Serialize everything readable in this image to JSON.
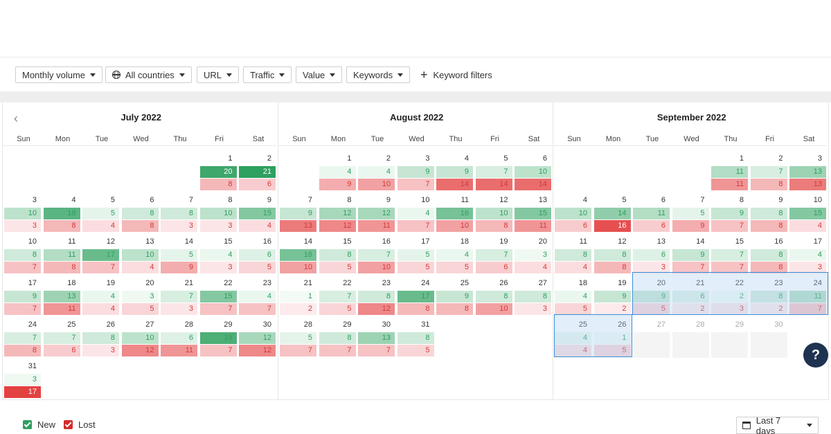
{
  "toolbar": {
    "monthly_volume": "Monthly volume",
    "all_countries": "All countries",
    "url": "URL",
    "traffic": "Traffic",
    "value": "Value",
    "keywords": "Keywords",
    "keyword_filters": "Keyword filters"
  },
  "colors": {
    "new_text": "#2f9e5f",
    "lost_text": "#d23a3a",
    "new_checkbox": "#2f9e5f",
    "lost_checkbox": "#d42a2a",
    "selection_border": "#3b8fd8"
  },
  "weekdays": [
    "Sun",
    "Mon",
    "Tue",
    "Wed",
    "Thu",
    "Fri",
    "Sat"
  ],
  "months": [
    {
      "title": "July 2022",
      "start_weekday": 5,
      "days": [
        [
          20,
          8
        ],
        [
          21,
          6
        ],
        [
          10,
          3
        ],
        [
          18,
          8
        ],
        [
          5,
          4
        ],
        [
          8,
          8
        ],
        [
          8,
          3
        ],
        [
          10,
          3
        ],
        [
          15,
          4
        ],
        [
          8,
          7
        ],
        [
          11,
          8
        ],
        [
          17,
          7
        ],
        [
          10,
          4
        ],
        [
          5,
          9
        ],
        [
          4,
          3
        ],
        [
          6,
          5
        ],
        [
          9,
          7
        ],
        [
          13,
          11
        ],
        [
          4,
          4
        ],
        [
          3,
          5
        ],
        [
          7,
          3
        ],
        [
          15,
          7
        ],
        [
          4,
          7
        ],
        [
          7,
          8
        ],
        [
          7,
          6
        ],
        [
          8,
          3
        ],
        [
          10,
          12
        ],
        [
          6,
          11
        ],
        [
          19,
          7
        ],
        [
          12,
          12
        ],
        [
          3,
          17
        ]
      ]
    },
    {
      "title": "August 2022",
      "start_weekday": 1,
      "days": [
        [
          4,
          9
        ],
        [
          4,
          10
        ],
        [
          9,
          7
        ],
        [
          9,
          14
        ],
        [
          7,
          14
        ],
        [
          10,
          14
        ],
        [
          9,
          13
        ],
        [
          12,
          12
        ],
        [
          12,
          11
        ],
        [
          4,
          7
        ],
        [
          16,
          10
        ],
        [
          10,
          8
        ],
        [
          15,
          11
        ],
        [
          16,
          10
        ],
        [
          8,
          5
        ],
        [
          7,
          10
        ],
        [
          5,
          5
        ],
        [
          4,
          5
        ],
        [
          7,
          6
        ],
        [
          3,
          4
        ],
        [
          1,
          2
        ],
        [
          7,
          5
        ],
        [
          8,
          12
        ],
        [
          17,
          8
        ],
        [
          9,
          8
        ],
        [
          8,
          10
        ],
        [
          8,
          3
        ],
        [
          5,
          7
        ],
        [
          8,
          7
        ],
        [
          13,
          7
        ],
        [
          8,
          5
        ]
      ]
    },
    {
      "title": "September 2022",
      "start_weekday": 4,
      "days": [
        [
          11,
          11
        ],
        [
          7,
          8
        ],
        [
          13,
          13
        ],
        [
          10,
          6
        ],
        [
          14,
          16
        ],
        [
          11,
          6
        ],
        [
          5,
          9
        ],
        [
          9,
          7
        ],
        [
          8,
          8
        ],
        [
          15,
          4
        ],
        [
          8,
          4
        ],
        [
          8,
          8
        ],
        [
          6,
          3
        ],
        [
          9,
          7
        ],
        [
          7,
          7
        ],
        [
          8,
          8
        ],
        [
          4,
          3
        ],
        [
          4,
          5
        ],
        [
          9,
          2
        ],
        [
          9,
          5
        ],
        [
          6,
          2
        ],
        [
          2,
          3
        ],
        [
          8,
          2
        ],
        [
          11,
          7
        ],
        [
          4,
          4
        ],
        [
          1,
          5
        ]
      ],
      "future_days": [
        27,
        28,
        29,
        30
      ]
    }
  ],
  "legend": {
    "new": "New",
    "lost": "Lost"
  },
  "period": {
    "label": "Last 7 days"
  },
  "help": {
    "label": "?"
  }
}
